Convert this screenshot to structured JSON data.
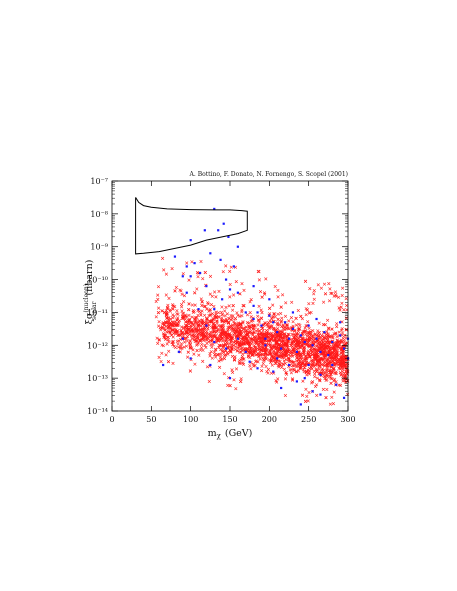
{
  "chart_data": {
    "type": "scatter",
    "credit": "A. Bottino, F. Donato, N. Fornengo, S. Scopel (2001)",
    "xlabel": {
      "main": "m",
      "sub": "χ",
      "unit": "(GeV)"
    },
    "ylabel": {
      "main": "ξσ",
      "sup": "(nucleon)",
      "sub": "scalar",
      "unit": "(nbarn)"
    },
    "xlim": [
      0,
      300
    ],
    "ylim_log10": [
      -14,
      -7
    ],
    "x_ticks": [
      {
        "value": 0,
        "label": "0"
      },
      {
        "value": 50,
        "label": "50"
      },
      {
        "value": 100,
        "label": "100"
      },
      {
        "value": 150,
        "label": "150"
      },
      {
        "value": 200,
        "label": "200"
      },
      {
        "value": 250,
        "label": "250"
      },
      {
        "value": 300,
        "label": "300"
      }
    ],
    "y_ticks": [
      {
        "exp": -7,
        "label": "10⁻⁷"
      },
      {
        "exp": -8,
        "label": "10⁻⁸"
      },
      {
        "exp": -9,
        "label": "10⁻⁹"
      },
      {
        "exp": -10,
        "label": "10⁻¹⁰"
      },
      {
        "exp": -11,
        "label": "10⁻¹¹"
      },
      {
        "exp": -12,
        "label": "10⁻¹²"
      },
      {
        "exp": -13,
        "label": "10⁻¹³"
      },
      {
        "exp": -14,
        "label": "10⁻¹⁴"
      }
    ],
    "colors": {
      "red_points": "#ff1a1a",
      "blue_points": "#1a1aff",
      "region": "#000000",
      "axes": "#000000"
    },
    "dama_region": [
      [
        30,
        -7.5
      ],
      [
        34,
        -7.65
      ],
      [
        40,
        -7.75
      ],
      [
        50,
        -7.8
      ],
      [
        70,
        -7.85
      ],
      [
        100,
        -7.87
      ],
      [
        130,
        -7.88
      ],
      [
        150,
        -7.88
      ],
      [
        165,
        -7.9
      ],
      [
        172,
        -7.92
      ],
      [
        172,
        -8.5
      ],
      [
        160,
        -8.6
      ],
      [
        140,
        -8.7
      ],
      [
        120,
        -8.8
      ],
      [
        100,
        -8.95
      ],
      [
        80,
        -9.05
      ],
      [
        60,
        -9.15
      ],
      [
        40,
        -9.2
      ],
      [
        30,
        -9.22
      ],
      [
        30,
        -7.5
      ]
    ],
    "blue_points": [
      [
        80,
        -9.3
      ],
      [
        90,
        -9.9
      ],
      [
        95,
        -9.6
      ],
      [
        100,
        -8.8
      ],
      [
        105,
        -9.5
      ],
      [
        112,
        -9.8
      ],
      [
        118,
        -8.5
      ],
      [
        125,
        -9.2
      ],
      [
        130,
        -7.85
      ],
      [
        135,
        -8.5
      ],
      [
        138,
        -9.4
      ],
      [
        142,
        -8.3
      ],
      [
        148,
        -8.7
      ],
      [
        155,
        -9.6
      ],
      [
        120,
        -10.2
      ],
      [
        140,
        -10.6
      ],
      [
        160,
        -10.4
      ],
      [
        110,
        -10.9
      ],
      [
        170,
        -11.0
      ],
      [
        180,
        -11.2
      ],
      [
        190,
        -11.4
      ],
      [
        200,
        -11.1
      ],
      [
        210,
        -11.6
      ],
      [
        220,
        -11.3
      ],
      [
        230,
        -11.5
      ],
      [
        240,
        -11.7
      ],
      [
        250,
        -11.4
      ],
      [
        260,
        -11.8
      ],
      [
        270,
        -11.6
      ],
      [
        280,
        -11.9
      ],
      [
        290,
        -11.7
      ],
      [
        300,
        -11.8
      ],
      [
        195,
        -12.0
      ],
      [
        215,
        -12.1
      ],
      [
        235,
        -12.2
      ],
      [
        255,
        -12.0
      ],
      [
        275,
        -12.3
      ],
      [
        295,
        -12.1
      ],
      [
        160,
        -11.8
      ],
      [
        145,
        -12.1
      ],
      [
        130,
        -11.9
      ],
      [
        100,
        -12.4
      ],
      [
        85,
        -12.2
      ],
      [
        175,
        -12.5
      ],
      [
        205,
        -12.8
      ],
      [
        225,
        -12.6
      ],
      [
        245,
        -13.0
      ],
      [
        265,
        -12.9
      ],
      [
        285,
        -13.2
      ],
      [
        255,
        -13.4
      ],
      [
        235,
        -13.1
      ],
      [
        215,
        -13.3
      ],
      [
        150,
        -13.0
      ],
      [
        295,
        -13.6
      ],
      [
        240,
        -13.8
      ],
      [
        265,
        -13.5
      ],
      [
        185,
        -12.7
      ],
      [
        125,
        -12.6
      ],
      [
        100,
        -9.9
      ],
      [
        160,
        -9.0
      ],
      [
        145,
        -10.0
      ],
      [
        180,
        -10.8
      ],
      [
        230,
        -11.0
      ],
      [
        260,
        -11.2
      ],
      [
        200,
        -10.6
      ],
      [
        290,
        -11.3
      ],
      [
        195,
        -11.8
      ],
      [
        210,
        -12.4
      ],
      [
        250,
        -12.6
      ],
      [
        280,
        -12.6
      ],
      [
        170,
        -12.2
      ],
      [
        120,
        -11.4
      ],
      [
        90,
        -11.8
      ],
      [
        65,
        -12.6
      ],
      [
        95,
        -10.4
      ],
      [
        180,
        -10.2
      ],
      [
        150,
        -10.3
      ],
      [
        130,
        -10.9
      ],
      [
        185,
        -11.0
      ],
      [
        205,
        -11.3
      ],
      [
        225,
        -11.8
      ],
      [
        245,
        -11.9
      ],
      [
        265,
        -12.2
      ],
      [
        300,
        -12.4
      ]
    ]
  }
}
